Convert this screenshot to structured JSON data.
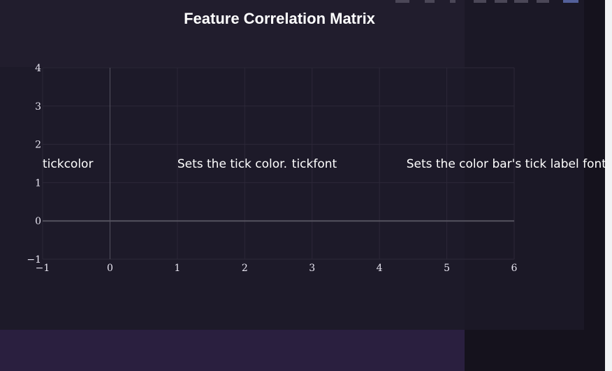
{
  "modebar": {
    "icons": [
      "camera-icon",
      "zoom-icon",
      "pan-icon",
      "zoom-in-icon",
      "zoom-out-icon",
      "autoscale-icon",
      "reset-axes-icon",
      "plotly-logo-icon"
    ]
  },
  "chart_data": {
    "type": "scatter",
    "title": "Feature Correlation Matrix",
    "xlabel": "",
    "ylabel": "",
    "xlim": [
      -1,
      6
    ],
    "ylim": [
      -1,
      4
    ],
    "x_ticks": [
      -1,
      0,
      1,
      2,
      3,
      4,
      5,
      6
    ],
    "y_ticks": [
      -1,
      0,
      1,
      2,
      3,
      4
    ],
    "grid": true,
    "zeroline": true,
    "series": [],
    "annotations": [
      {
        "text": "tickcolor",
        "x": -1,
        "y": 1.5
      },
      {
        "text": "Sets the tick color.",
        "x": 1,
        "y": 1.5
      },
      {
        "text": "tickfont",
        "x": 2.7,
        "y": 1.5
      },
      {
        "text": "Sets the color bar's tick label font",
        "x": 4.4,
        "y": 1.5
      }
    ],
    "colors": {
      "background": "#1d1a29",
      "grid": "#2c2838",
      "zeroline": "#55525f",
      "text": "#ffffff"
    }
  }
}
